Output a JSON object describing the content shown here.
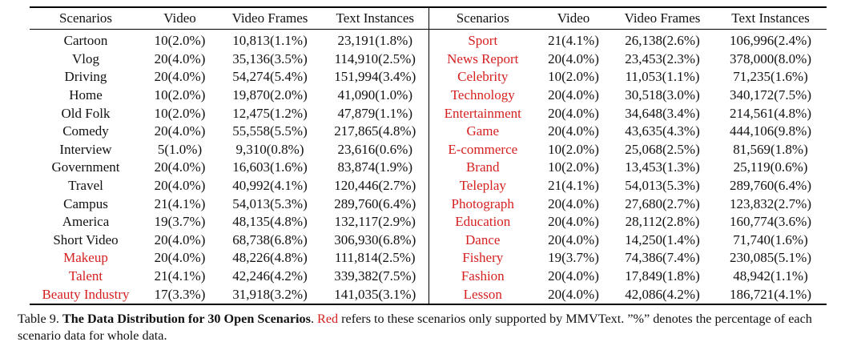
{
  "table": {
    "headers": [
      "Scenarios",
      "Video",
      "Video Frames",
      "Text Instances",
      "Scenarios",
      "Video",
      "Video Frames",
      "Text Instances"
    ],
    "highlight_color": "#d61f1f",
    "rows": [
      {
        "left": {
          "scenario": "Cartoon",
          "video": "10(2.0%)",
          "frames": "10,813(1.1%)",
          "texts": "23,191(1.8%)",
          "red": false
        },
        "right": {
          "scenario": "Sport",
          "video": "21(4.1%)",
          "frames": "26,138(2.6%)",
          "texts": "106,996(2.4%)",
          "red": true
        }
      },
      {
        "left": {
          "scenario": "Vlog",
          "video": "20(4.0%)",
          "frames": "35,136(3.5%)",
          "texts": "114,910(2.5%)",
          "red": false
        },
        "right": {
          "scenario": "News Report",
          "video": "20(4.0%)",
          "frames": "23,453(2.3%)",
          "texts": "378,000(8.0%)",
          "red": true
        }
      },
      {
        "left": {
          "scenario": "Driving",
          "video": "20(4.0%)",
          "frames": "54,274(5.4%)",
          "texts": "151,994(3.4%)",
          "red": false
        },
        "right": {
          "scenario": "Celebrity",
          "video": "10(2.0%)",
          "frames": "11,053(1.1%)",
          "texts": "71,235(1.6%)",
          "red": true
        }
      },
      {
        "left": {
          "scenario": "Home",
          "video": "10(2.0%)",
          "frames": "19,870(2.0%)",
          "texts": "41,090(1.0%)",
          "red": false
        },
        "right": {
          "scenario": "Technology",
          "video": "20(4.0%)",
          "frames": "30,518(3.0%)",
          "texts": "340,172(7.5%)",
          "red": true
        }
      },
      {
        "left": {
          "scenario": "Old Folk",
          "video": "10(2.0%)",
          "frames": "12,475(1.2%)",
          "texts": "47,879(1.1%)",
          "red": false
        },
        "right": {
          "scenario": "Entertainment",
          "video": "20(4.0%)",
          "frames": "34,648(3.4%)",
          "texts": "214,561(4.8%)",
          "red": true
        }
      },
      {
        "left": {
          "scenario": "Comedy",
          "video": "20(4.0%)",
          "frames": "55,558(5.5%)",
          "texts": "217,865(4.8%)",
          "red": false
        },
        "right": {
          "scenario": "Game",
          "video": "20(4.0%)",
          "frames": "43,635(4.3%)",
          "texts": "444,106(9.8%)",
          "red": true
        }
      },
      {
        "left": {
          "scenario": "Interview",
          "video": "5(1.0%)",
          "frames": "9,310(0.8%)",
          "texts": "23,616(0.6%)",
          "red": false
        },
        "right": {
          "scenario": "E-commerce",
          "video": "10(2.0%)",
          "frames": "25,068(2.5%)",
          "texts": "81,569(1.8%)",
          "red": true
        }
      },
      {
        "left": {
          "scenario": "Government",
          "video": "20(4.0%)",
          "frames": "16,603(1.6%)",
          "texts": "83,874(1.9%)",
          "red": false
        },
        "right": {
          "scenario": "Brand",
          "video": "10(2.0%)",
          "frames": "13,453(1.3%)",
          "texts": "25,119(0.6%)",
          "red": true
        }
      },
      {
        "left": {
          "scenario": "Travel",
          "video": "20(4.0%)",
          "frames": "40,992(4.1%)",
          "texts": "120,446(2.7%)",
          "red": false
        },
        "right": {
          "scenario": "Teleplay",
          "video": "21(4.1%)",
          "frames": "54,013(5.3%)",
          "texts": "289,760(6.4%)",
          "red": true
        }
      },
      {
        "left": {
          "scenario": "Campus",
          "video": "21(4.1%)",
          "frames": "54,013(5.3%)",
          "texts": "289,760(6.4%)",
          "red": false
        },
        "right": {
          "scenario": "Photograph",
          "video": "20(4.0%)",
          "frames": "27,680(2.7%)",
          "texts": "123,832(2.7%)",
          "red": true
        }
      },
      {
        "left": {
          "scenario": "America",
          "video": "19(3.7%)",
          "frames": "48,135(4.8%)",
          "texts": "132,117(2.9%)",
          "red": false
        },
        "right": {
          "scenario": "Education",
          "video": "20(4.0%)",
          "frames": "28,112(2.8%)",
          "texts": "160,774(3.6%)",
          "red": true
        }
      },
      {
        "left": {
          "scenario": "Short Video",
          "video": "20(4.0%)",
          "frames": "68,738(6.8%)",
          "texts": "306,930(6.8%)",
          "red": false
        },
        "right": {
          "scenario": "Dance",
          "video": "20(4.0%)",
          "frames": "14,250(1.4%)",
          "texts": "71,740(1.6%)",
          "red": true
        }
      },
      {
        "left": {
          "scenario": "Makeup",
          "video": "20(4.0%)",
          "frames": "48,226(4.8%)",
          "texts": "111,814(2.5%)",
          "red": true
        },
        "right": {
          "scenario": "Fishery",
          "video": "19(3.7%)",
          "frames": "74,386(7.4%)",
          "texts": "230,085(5.1%)",
          "red": true
        }
      },
      {
        "left": {
          "scenario": "Talent",
          "video": "21(4.1%)",
          "frames": "42,246(4.2%)",
          "texts": "339,382(7.5%)",
          "red": true
        },
        "right": {
          "scenario": "Fashion",
          "video": "20(4.0%)",
          "frames": "17,849(1.8%)",
          "texts": "48,942(1.1%)",
          "red": true
        }
      },
      {
        "left": {
          "scenario": "Beauty Industry",
          "video": "17(3.3%)",
          "frames": "31,918(3.2%)",
          "texts": "141,035(3.1%)",
          "red": true
        },
        "right": {
          "scenario": "Lesson",
          "video": "20(4.0%)",
          "frames": "42,086(4.2%)",
          "texts": "186,721(4.1%)",
          "red": true
        }
      }
    ]
  },
  "caption": {
    "label": "Table 9.",
    "title": "The Data Distribution for 30 Open Scenarios",
    "after_title": ".",
    "red_word": "Red",
    "rest": "refers to these scenarios only supported by MMVText. ”%” denotes the percentage of each scenario data for whole data."
  }
}
